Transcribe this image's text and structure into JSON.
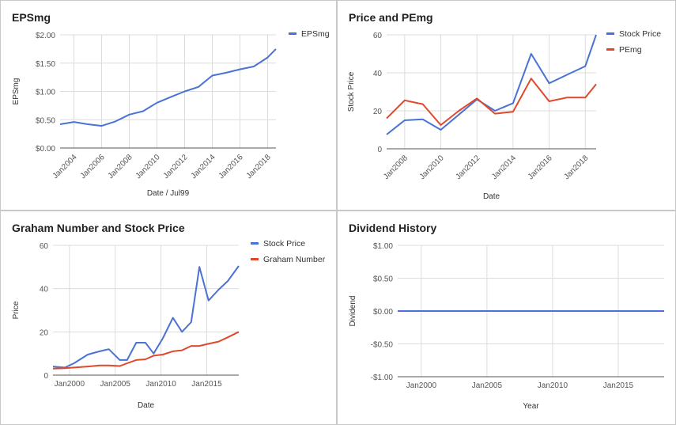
{
  "colors": {
    "blue": "#4a72d4",
    "red": "#e0482b",
    "grid": "#dcdcdc",
    "axis": "#333333"
  },
  "chart_data": [
    {
      "type": "line",
      "title": "EPSmg",
      "xlabel": "Date / Jul99",
      "ylabel": "EPSmg",
      "x_ticks": [
        "Jan2004",
        "Jan2006",
        "Jan2008",
        "Jan2010",
        "Jan2012",
        "Jan2014",
        "Jan2016",
        "Jan2018"
      ],
      "y_ticks": [
        "$0.00",
        "$0.50",
        "$1.00",
        "$1.50",
        "$2.00"
      ],
      "xlim": [
        2003.0,
        2018.6
      ],
      "ylim": [
        0,
        2
      ],
      "legend_position": "top-right",
      "grid": true,
      "series": [
        {
          "name": "EPSmg",
          "color": "#4a72d4",
          "x": [
            2003.0,
            2004.0,
            2005.0,
            2006.0,
            2007.0,
            2008.0,
            2009.0,
            2010.0,
            2011.0,
            2012.0,
            2013.0,
            2014.0,
            2015.0,
            2016.0,
            2017.0,
            2018.0,
            2018.6
          ],
          "y": [
            0.42,
            0.46,
            0.42,
            0.39,
            0.47,
            0.59,
            0.65,
            0.8,
            0.9,
            1.0,
            1.08,
            1.28,
            1.33,
            1.39,
            1.44,
            1.6,
            1.75
          ]
        }
      ]
    },
    {
      "type": "line",
      "title": "Price and PEmg",
      "xlabel": "Date",
      "ylabel": "Stock Price",
      "x_ticks": [
        "Jan2008",
        "Jan2010",
        "Jan2012",
        "Jan2014",
        "Jan2016",
        "Jan2018"
      ],
      "y_ticks": [
        "0",
        "20",
        "40",
        "60"
      ],
      "xlim": [
        2007.0,
        2018.6
      ],
      "ylim": [
        0,
        60
      ],
      "legend_position": "top-right",
      "grid": true,
      "series": [
        {
          "name": "Stock Price",
          "color": "#4a72d4",
          "x": [
            2007.0,
            2008.0,
            2009.0,
            2010.0,
            2011.0,
            2012.0,
            2013.0,
            2014.0,
            2015.0,
            2016.0,
            2017.0,
            2018.0,
            2018.6
          ],
          "y": [
            7.5,
            15,
            15.5,
            10,
            18,
            26,
            20,
            24,
            50,
            34.5,
            39,
            43.5,
            60
          ]
        },
        {
          "name": "PEmg",
          "color": "#e0482b",
          "x": [
            2007.0,
            2008.0,
            2009.0,
            2010.0,
            2011.0,
            2012.0,
            2013.0,
            2014.0,
            2015.0,
            2016.0,
            2017.0,
            2018.0,
            2018.6
          ],
          "y": [
            16,
            25.5,
            23.5,
            12.5,
            20,
            26.5,
            18.5,
            19.5,
            37,
            25,
            27,
            27,
            34
          ]
        }
      ]
    },
    {
      "type": "line",
      "title": "Graham Number and Stock Price",
      "xlabel": "Date",
      "ylabel": "Price",
      "x_ticks": [
        "Jan2000",
        "Jan2005",
        "Jan2010",
        "Jan2015"
      ],
      "y_ticks": [
        "0",
        "20",
        "40",
        "60"
      ],
      "xlim": [
        1998.2,
        2018.5
      ],
      "ylim": [
        0,
        60
      ],
      "legend_position": "top-right",
      "grid": true,
      "series": [
        {
          "name": "Stock Price",
          "color": "#4a72d4",
          "x": [
            1998.2,
            1999.5,
            2000.5,
            2002.0,
            2003.3,
            2004.3,
            2005.5,
            2006.3,
            2007.3,
            2008.3,
            2009.2,
            2010.2,
            2011.3,
            2012.3,
            2013.3,
            2014.2,
            2015.2,
            2016.3,
            2017.3,
            2018.5
          ],
          "y": [
            4,
            3.5,
            5.5,
            9.5,
            11,
            12,
            7,
            7,
            15,
            15,
            10,
            17,
            26.5,
            20,
            24.5,
            50,
            34.5,
            39.5,
            43.5,
            50.5
          ]
        },
        {
          "name": "Graham Number",
          "color": "#e0482b",
          "x": [
            1998.2,
            1999.5,
            2000.5,
            2002.0,
            2003.3,
            2004.3,
            2005.5,
            2006.3,
            2007.3,
            2008.3,
            2009.2,
            2010.2,
            2011.3,
            2012.3,
            2013.3,
            2014.2,
            2015.2,
            2016.3,
            2017.3,
            2018.5
          ],
          "y": [
            3,
            3.2,
            3.5,
            4.0,
            4.5,
            4.5,
            4.2,
            5.5,
            7.0,
            7.3,
            9.0,
            9.5,
            11.0,
            11.5,
            13.5,
            13.5,
            14.5,
            15.5,
            17.5,
            20
          ]
        }
      ]
    },
    {
      "type": "line",
      "title": "Dividend History",
      "xlabel": "Year",
      "ylabel": "Dividend",
      "x_ticks": [
        "Jan2000",
        "Jan2005",
        "Jan2010",
        "Jan2015"
      ],
      "y_ticks": [
        "-$1.00",
        "-$0.50",
        "$0.00",
        "$0.50",
        "$1.00"
      ],
      "xlim": [
        1998.2,
        2018.5
      ],
      "ylim": [
        -1,
        1
      ],
      "legend_position": "none",
      "grid": true,
      "series": [
        {
          "color": "#4a72d4",
          "x": [
            1998.2,
            2018.5
          ],
          "y": [
            0,
            0
          ]
        }
      ]
    }
  ]
}
